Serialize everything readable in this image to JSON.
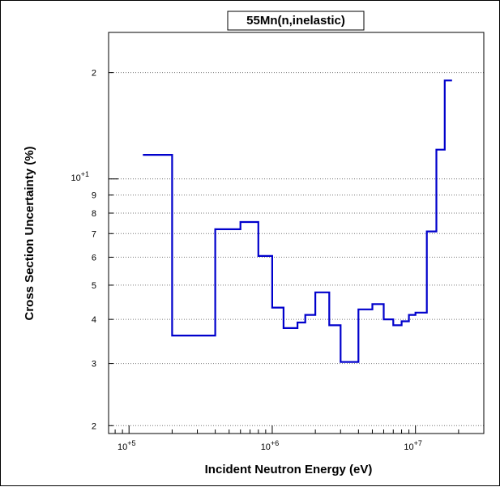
{
  "chart_data": {
    "type": "line",
    "step": true,
    "title": "55Mn(n,inelastic)",
    "xlabel": "Incident Neutron Energy (eV)",
    "ylabel": "Cross Section Uncertainty (%)",
    "x_scale": "log",
    "y_scale": "log",
    "xlim": [
      72000,
      30000000
    ],
    "ylim": [
      1.9,
      26
    ],
    "grid": "horizontal-dotted",
    "line_color": "#0000cc",
    "x_ticks": [
      {
        "base": "10",
        "exp": "+5"
      },
      {
        "base": "10",
        "exp": "+6"
      },
      {
        "base": "10",
        "exp": "+7"
      }
    ],
    "y_major_ticks": [
      {
        "value": 10,
        "base": "10",
        "exp": "+1"
      }
    ],
    "y_minor_ticks": [
      {
        "value": 2,
        "label": "2"
      },
      {
        "value": 3,
        "label": "3"
      },
      {
        "value": 4,
        "label": "4"
      },
      {
        "value": 5,
        "label": "5"
      },
      {
        "value": 6,
        "label": "6"
      },
      {
        "value": 7,
        "label": "7"
      },
      {
        "value": 8,
        "label": "8"
      },
      {
        "value": 9,
        "label": "9"
      },
      {
        "value": 20,
        "label": "2"
      }
    ],
    "segments": [
      {
        "x0": 125000,
        "x1": 200000,
        "y": 11.7
      },
      {
        "x0": 200000,
        "x1": 400000,
        "y": 3.6
      },
      {
        "x0": 400000,
        "x1": 600000,
        "y": 7.2
      },
      {
        "x0": 600000,
        "x1": 800000,
        "y": 7.55
      },
      {
        "x0": 800000,
        "x1": 1000000,
        "y": 6.05
      },
      {
        "x0": 1000000,
        "x1": 1200000,
        "y": 4.32
      },
      {
        "x0": 1200000,
        "x1": 1500000,
        "y": 3.78
      },
      {
        "x0": 1500000,
        "x1": 1700000,
        "y": 3.92
      },
      {
        "x0": 1700000,
        "x1": 2000000,
        "y": 4.12
      },
      {
        "x0": 2000000,
        "x1": 2500000,
        "y": 4.77
      },
      {
        "x0": 2500000,
        "x1": 3000000,
        "y": 3.85
      },
      {
        "x0": 3000000,
        "x1": 4000000,
        "y": 3.03
      },
      {
        "x0": 4000000,
        "x1": 5000000,
        "y": 4.27
      },
      {
        "x0": 5000000,
        "x1": 6000000,
        "y": 4.42
      },
      {
        "x0": 6000000,
        "x1": 7000000,
        "y": 4.0
      },
      {
        "x0": 7000000,
        "x1": 8000000,
        "y": 3.85
      },
      {
        "x0": 8000000,
        "x1": 9000000,
        "y": 3.95
      },
      {
        "x0": 9000000,
        "x1": 10000000,
        "y": 4.12
      },
      {
        "x0": 10000000,
        "x1": 12000000,
        "y": 4.18
      },
      {
        "x0": 12000000,
        "x1": 14000000,
        "y": 7.1
      },
      {
        "x0": 14000000,
        "x1": 16000000,
        "y": 12.1
      },
      {
        "x0": 16000000,
        "x1": 18000000,
        "y": 19.0
      }
    ]
  }
}
